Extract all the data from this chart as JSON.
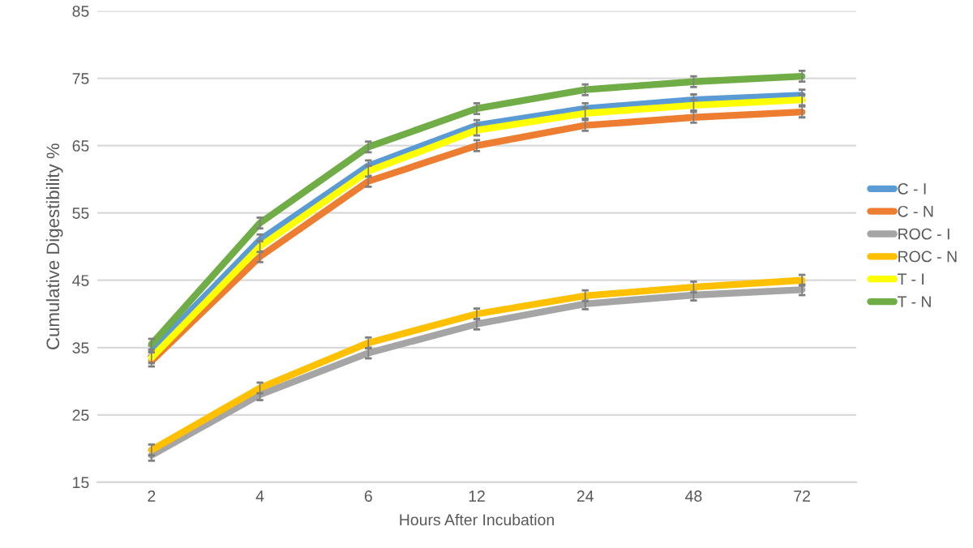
{
  "chart_data": {
    "type": "line",
    "xlabel": "Hours After Incubation",
    "ylabel": "Cumulative Digestibility %",
    "categories": [
      "2",
      "4",
      "6",
      "12",
      "24",
      "48",
      "72"
    ],
    "series": [
      {
        "name": "C - I",
        "color": "#5b9bd5",
        "values": [
          34.5,
          51,
          62,
          68,
          70.5,
          71.8,
          72.5
        ],
        "errors": [
          0.8,
          0.8,
          0.8,
          0.8,
          0.8,
          0.8,
          0.8
        ]
      },
      {
        "name": "C - N",
        "color": "#ed7d31",
        "values": [
          33,
          48.5,
          59.7,
          65,
          68,
          69.2,
          70
        ],
        "errors": [
          0.8,
          0.8,
          0.8,
          0.8,
          0.8,
          0.8,
          0.8
        ]
      },
      {
        "name": "ROC - I",
        "color": "#a5a5a5",
        "values": [
          19,
          28,
          34.2,
          38.5,
          41.5,
          42.8,
          43.6
        ],
        "errors": [
          0.8,
          0.8,
          0.8,
          0.8,
          0.8,
          0.8,
          0.8
        ]
      },
      {
        "name": "ROC - N",
        "color": "#ffc000",
        "values": [
          19.8,
          29,
          35.7,
          40,
          42.7,
          44,
          45
        ],
        "errors": [
          0.8,
          0.8,
          0.8,
          0.8,
          0.8,
          0.8,
          0.8
        ]
      },
      {
        "name": "T - I",
        "color": "#ffff00",
        "values": [
          33.5,
          50,
          61.2,
          67.3,
          69.8,
          71,
          71.8
        ],
        "errors": [
          0.8,
          0.8,
          0.8,
          0.8,
          0.8,
          0.8,
          0.8
        ]
      },
      {
        "name": "T - N",
        "color": "#70ad47",
        "values": [
          35.5,
          53.5,
          64.8,
          70.5,
          73.3,
          74.5,
          75.3
        ],
        "errors": [
          0.8,
          0.8,
          0.8,
          0.8,
          0.8,
          0.8,
          0.8
        ]
      }
    ],
    "ylim": [
      15,
      85
    ],
    "yticks": [
      15,
      25,
      35,
      45,
      55,
      65,
      75,
      85
    ],
    "grid": "y",
    "legend": "right",
    "marker": "none",
    "line_style": "solid"
  }
}
